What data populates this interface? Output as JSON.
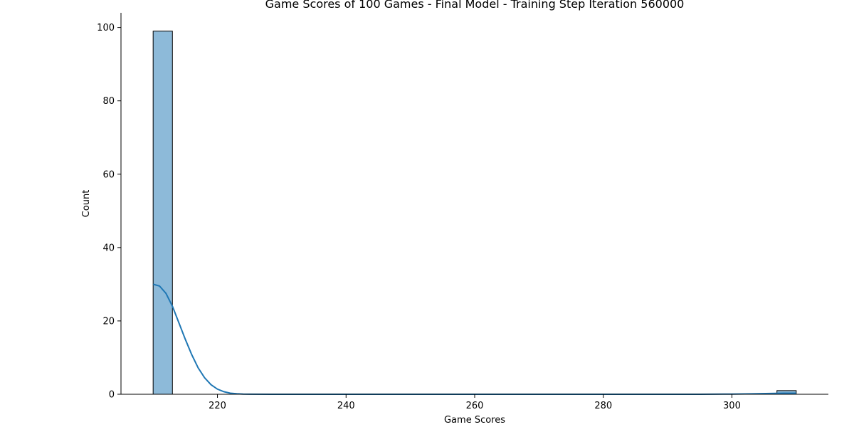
{
  "chart_data": {
    "type": "bar",
    "title": "Game Scores of 100 Games - Final Model - Training Step Iteration 560000",
    "xlabel": "Game Scores",
    "ylabel": "Count",
    "xlim": [
      205,
      315
    ],
    "ylim": [
      0,
      104
    ],
    "xticks": [
      220,
      240,
      260,
      280,
      300
    ],
    "yticks": [
      0,
      20,
      40,
      60,
      80,
      100
    ],
    "grid": false,
    "bins": [
      {
        "x0": 210,
        "x1": 213,
        "count": 99
      },
      {
        "x0": 307,
        "x1": 310,
        "count": 1
      }
    ],
    "kde": {
      "x": [
        210,
        211,
        212,
        213,
        214,
        215,
        216,
        217,
        218,
        219,
        220,
        221,
        222,
        223,
        224,
        225,
        230,
        240,
        250,
        260,
        270,
        280,
        290,
        295,
        300,
        303,
        306,
        308,
        310
      ],
      "y": [
        30,
        29.5,
        27.5,
        24,
        19.5,
        15,
        10.8,
        7.2,
        4.5,
        2.6,
        1.4,
        0.7,
        0.3,
        0.15,
        0.06,
        0.03,
        0,
        0,
        0,
        0,
        0,
        0,
        0,
        0.01,
        0.05,
        0.12,
        0.22,
        0.28,
        0.3
      ]
    },
    "colors": {
      "bar_fill": "#8dbad9",
      "bar_edge": "#000000",
      "kde_line": "#1f77b4"
    }
  }
}
